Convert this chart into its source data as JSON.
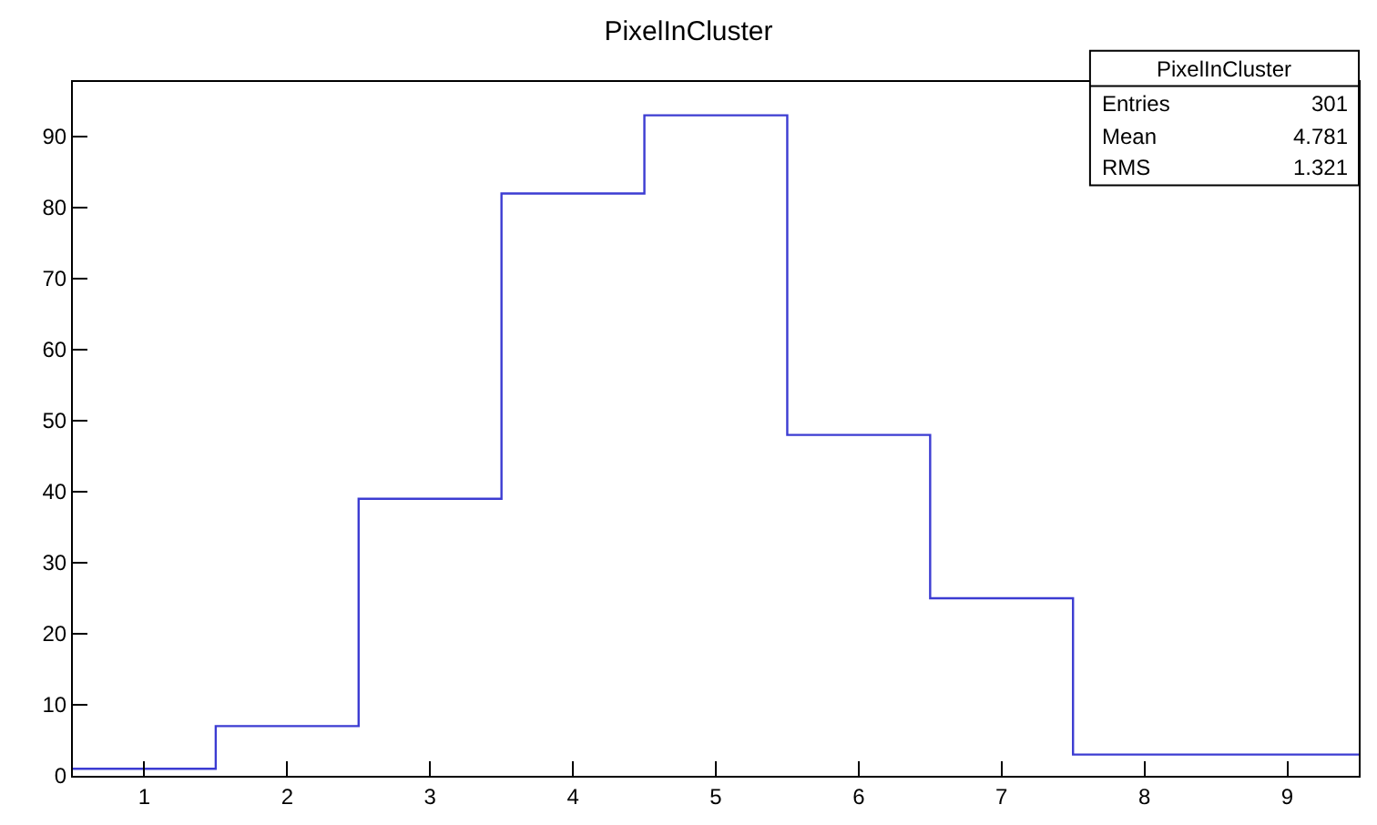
{
  "chart_data": {
    "type": "histogram",
    "title": "PixelInCluster",
    "bins": [
      0.5,
      1.5,
      2.5,
      3.5,
      4.5,
      5.5,
      6.5,
      7.5,
      8.5,
      9.5
    ],
    "values": [
      1,
      7,
      39,
      82,
      93,
      48,
      25,
      3,
      3
    ],
    "color": "#3c3cd2",
    "xlim": [
      0.5,
      9.5
    ],
    "xticks": [
      1,
      2,
      3,
      4,
      5,
      6,
      7,
      8,
      9
    ],
    "ylim": [
      0,
      97.7
    ],
    "yticks": [
      0,
      10,
      20,
      30,
      40,
      50,
      60,
      70,
      80,
      90
    ],
    "annotations": [
      "PixelInCluster",
      "Entries",
      "301",
      "Mean",
      "4.781",
      "RMS",
      "1.321"
    ]
  }
}
